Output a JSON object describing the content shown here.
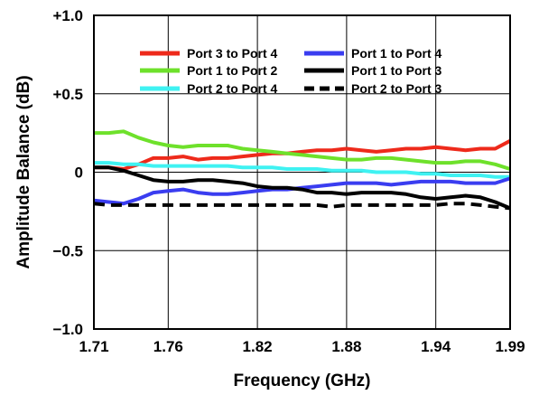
{
  "chart_data": {
    "type": "line",
    "title": "",
    "xlabel": "Frequency (GHz)",
    "ylabel": "Amplitude Balance (dB)",
    "xlim": [
      1.71,
      1.99
    ],
    "ylim": [
      -1.0,
      1.0
    ],
    "x_ticks": [
      1.71,
      1.76,
      1.82,
      1.88,
      1.94,
      1.99
    ],
    "x_tick_labels": [
      "1.71",
      "1.76",
      "1.82",
      "1.88",
      "1.94",
      "1.99"
    ],
    "y_ticks": [
      1.0,
      0.5,
      0,
      -0.5,
      -1.0
    ],
    "y_tick_labels": [
      "+1.0",
      "+0.5",
      "0",
      "−0.5",
      "−1.0"
    ],
    "grid": true,
    "legend_position": "top",
    "x": [
      1.71,
      1.72,
      1.73,
      1.74,
      1.75,
      1.76,
      1.77,
      1.78,
      1.79,
      1.8,
      1.81,
      1.82,
      1.83,
      1.84,
      1.85,
      1.86,
      1.87,
      1.88,
      1.89,
      1.9,
      1.91,
      1.92,
      1.93,
      1.94,
      1.95,
      1.96,
      1.97,
      1.98,
      1.99
    ],
    "series": [
      {
        "name": "Port 3 to Port 4",
        "color": "#ee2a1b",
        "dash": "solid",
        "values": [
          0.03,
          0.03,
          0.02,
          0.05,
          0.09,
          0.09,
          0.1,
          0.08,
          0.09,
          0.09,
          0.1,
          0.11,
          0.12,
          0.12,
          0.13,
          0.14,
          0.14,
          0.15,
          0.14,
          0.13,
          0.14,
          0.15,
          0.15,
          0.16,
          0.15,
          0.14,
          0.15,
          0.15,
          0.2
        ]
      },
      {
        "name": "Port 1 to Port 2",
        "color": "#6ee12b",
        "dash": "solid",
        "values": [
          0.25,
          0.25,
          0.26,
          0.22,
          0.19,
          0.17,
          0.16,
          0.17,
          0.17,
          0.17,
          0.15,
          0.14,
          0.13,
          0.12,
          0.11,
          0.1,
          0.09,
          0.08,
          0.08,
          0.09,
          0.09,
          0.08,
          0.07,
          0.06,
          0.06,
          0.07,
          0.07,
          0.05,
          0.02
        ]
      },
      {
        "name": "Port 2 to Port 4",
        "color": "#3ff2f2",
        "dash": "solid",
        "values": [
          0.06,
          0.06,
          0.05,
          0.05,
          0.04,
          0.04,
          0.04,
          0.04,
          0.04,
          0.04,
          0.03,
          0.03,
          0.03,
          0.02,
          0.02,
          0.02,
          0.01,
          0.01,
          0.01,
          0.0,
          0.0,
          0.0,
          -0.01,
          -0.01,
          -0.02,
          -0.02,
          -0.02,
          -0.03,
          -0.03
        ]
      },
      {
        "name": "Port 1 to Port 4",
        "color": "#3a3df0",
        "dash": "solid",
        "values": [
          -0.18,
          -0.19,
          -0.2,
          -0.17,
          -0.13,
          -0.12,
          -0.11,
          -0.13,
          -0.14,
          -0.14,
          -0.13,
          -0.12,
          -0.11,
          -0.11,
          -0.1,
          -0.09,
          -0.08,
          -0.07,
          -0.07,
          -0.07,
          -0.08,
          -0.07,
          -0.06,
          -0.06,
          -0.06,
          -0.07,
          -0.07,
          -0.07,
          -0.04
        ]
      },
      {
        "name": "Port 1 to Port 3",
        "color": "#000000",
        "dash": "solid",
        "values": [
          0.03,
          0.03,
          0.01,
          -0.02,
          -0.05,
          -0.06,
          -0.06,
          -0.05,
          -0.05,
          -0.06,
          -0.07,
          -0.09,
          -0.1,
          -0.1,
          -0.11,
          -0.13,
          -0.13,
          -0.14,
          -0.13,
          -0.13,
          -0.13,
          -0.14,
          -0.16,
          -0.17,
          -0.16,
          -0.15,
          -0.16,
          -0.19,
          -0.23
        ]
      },
      {
        "name": "Port 2 to Port 3",
        "color": "#000000",
        "dash": "dashed",
        "values": [
          -0.2,
          -0.21,
          -0.21,
          -0.21,
          -0.21,
          -0.21,
          -0.21,
          -0.21,
          -0.21,
          -0.21,
          -0.21,
          -0.21,
          -0.21,
          -0.21,
          -0.21,
          -0.21,
          -0.22,
          -0.21,
          -0.21,
          -0.21,
          -0.21,
          -0.21,
          -0.21,
          -0.21,
          -0.2,
          -0.2,
          -0.21,
          -0.22,
          -0.23
        ]
      }
    ]
  }
}
